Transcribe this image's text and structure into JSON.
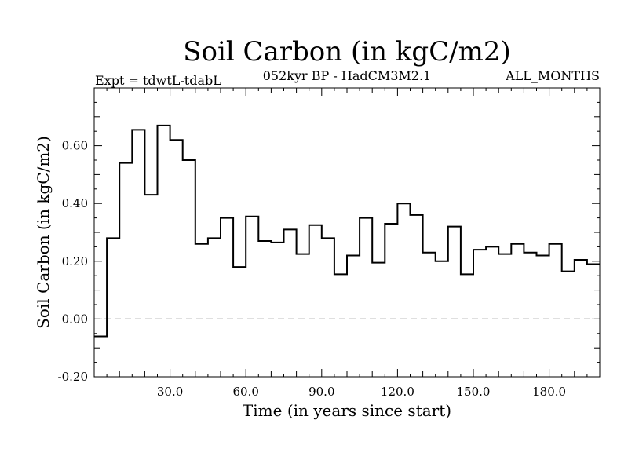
{
  "chart_data": {
    "type": "line",
    "style": "step",
    "title": "Soil Carbon (in kgC/m2)",
    "subtitle_left": "Expt = tdwtL-tdabL",
    "subtitle_center": "052kyr BP - HadCM3M2.1",
    "subtitle_right": "ALL_MONTHS",
    "xlabel": "Time (in years since start)",
    "ylabel": "Soil Carbon (in kgC/m2)",
    "xlim": [
      0,
      200
    ],
    "ylim": [
      -0.2,
      0.8
    ],
    "x_ticks": [
      30,
      60,
      90,
      120,
      150,
      180
    ],
    "x_tick_labels": [
      "30.0",
      "60.0",
      "90.0",
      "120.0",
      "150.0",
      "180.0"
    ],
    "y_ticks": [
      -0.2,
      0.0,
      0.2,
      0.4,
      0.6
    ],
    "y_tick_labels": [
      "-0.20",
      "0.00",
      "0.20",
      "0.40",
      "0.60"
    ],
    "zero_line": "dashed",
    "grid": false,
    "step_width": 5,
    "x": [
      0,
      5,
      10,
      15,
      20,
      25,
      30,
      35,
      40,
      45,
      50,
      55,
      60,
      65,
      70,
      75,
      80,
      85,
      90,
      95,
      100,
      105,
      110,
      115,
      120,
      125,
      130,
      135,
      140,
      145,
      150,
      155,
      160,
      165,
      170,
      175,
      180,
      185,
      190,
      195
    ],
    "values": [
      -0.06,
      0.28,
      0.54,
      0.655,
      0.43,
      0.67,
      0.62,
      0.55,
      0.26,
      0.28,
      0.35,
      0.18,
      0.355,
      0.27,
      0.265,
      0.31,
      0.225,
      0.325,
      0.28,
      0.155,
      0.22,
      0.35,
      0.195,
      0.33,
      0.4,
      0.36,
      0.23,
      0.2,
      0.32,
      0.155,
      0.24,
      0.25,
      0.225,
      0.26,
      0.23,
      0.22,
      0.26,
      0.165,
      0.205,
      0.19
    ]
  }
}
